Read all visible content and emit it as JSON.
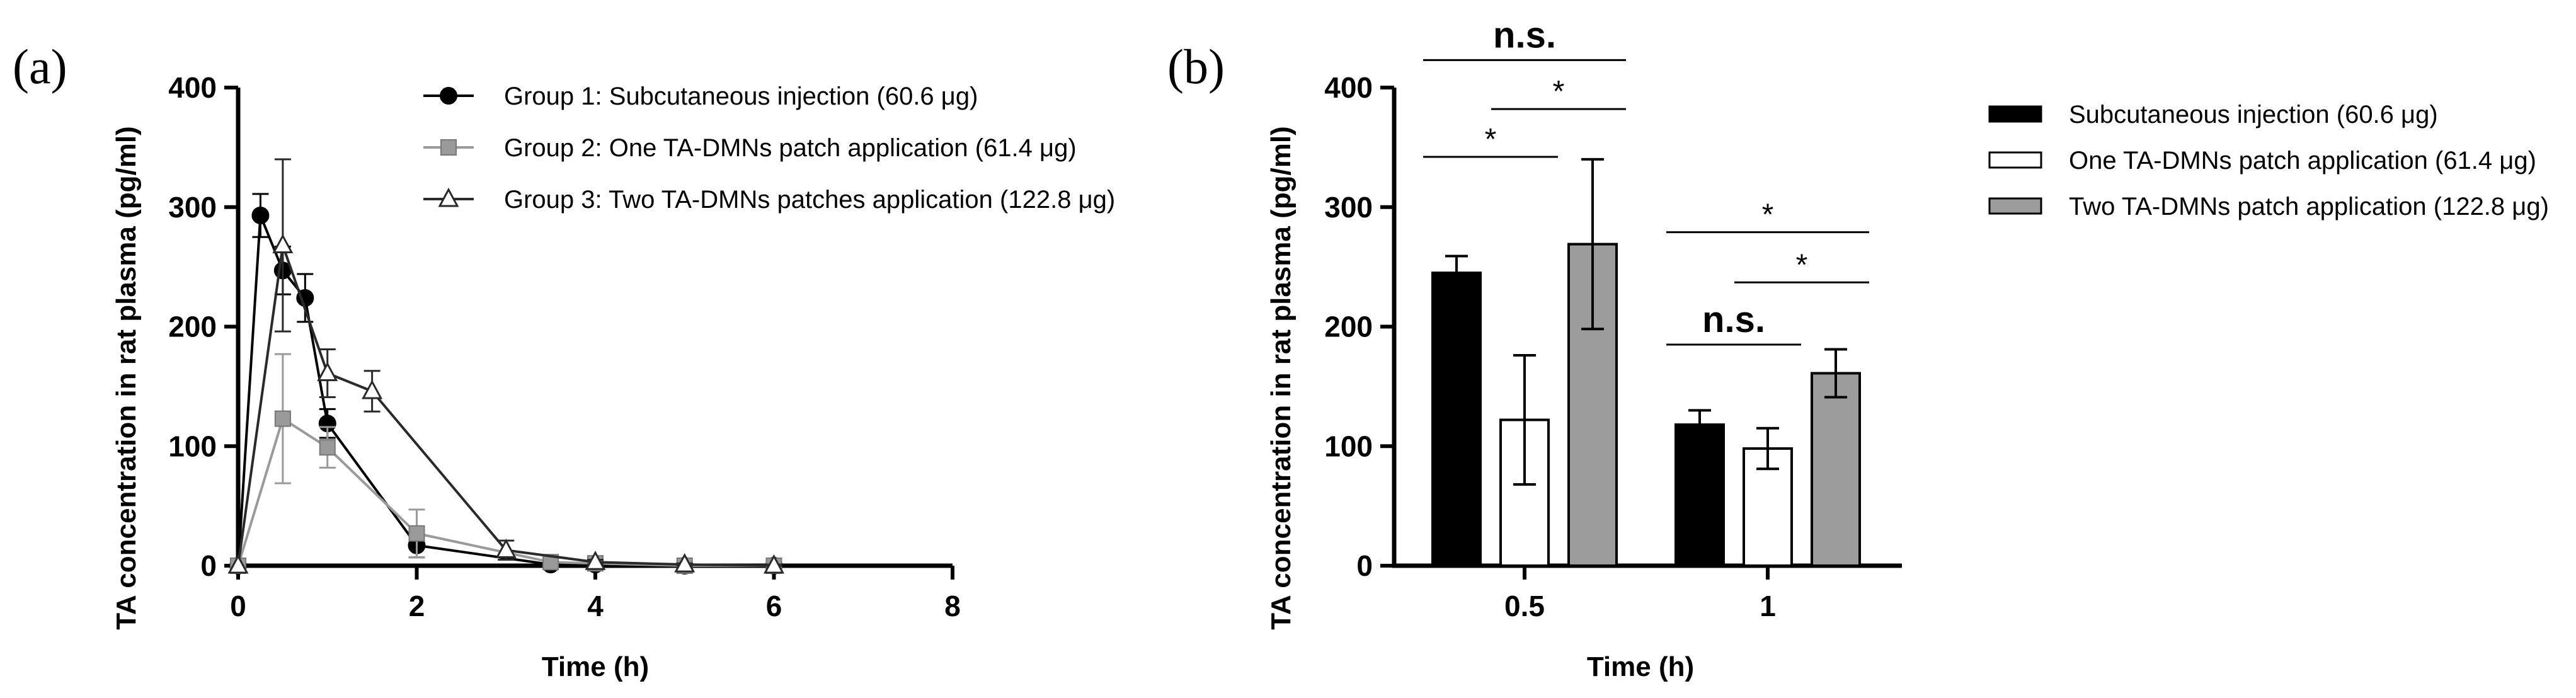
{
  "chart_data": [
    {
      "panel": "(a)",
      "type": "line",
      "xlabel": "Time (h)",
      "ylabel": "TA concentration in rat plasma (pg/ml)",
      "xlim": [
        0,
        8
      ],
      "ylim": [
        0,
        400
      ],
      "xticks": [
        "0",
        "2",
        "4",
        "6",
        "8"
      ],
      "yticks": [
        "0",
        "100",
        "200",
        "300",
        "400"
      ],
      "legend_position": "top-right",
      "grid": false,
      "series": [
        {
          "name": "Group 1: Subcutaneous injection (60.6 μg)",
          "color": "#000000",
          "marker": "circle",
          "x": [
            0,
            0.25,
            0.5,
            0.75,
            1,
            2,
            3.5,
            4,
            5,
            6
          ],
          "y": [
            0,
            293,
            247,
            224,
            119,
            17,
            1,
            1,
            0,
            0
          ],
          "err": [
            0,
            18,
            20,
            20,
            12,
            10,
            2,
            2,
            1,
            1
          ]
        },
        {
          "name": "Group 2: One TA-DMNs patch application (61.4 μg)",
          "color": "#9a9a9a",
          "marker": "square",
          "x": [
            0,
            0.5,
            1,
            2,
            3.5,
            4,
            5,
            6
          ],
          "y": [
            0,
            123,
            99,
            27,
            3,
            2,
            0,
            0
          ],
          "err": [
            0,
            54,
            17,
            20,
            3,
            2,
            1,
            1
          ]
        },
        {
          "name": "Group 3: Two TA-DMNs patches application (122.8 μg)",
          "color": "#2a2a2a",
          "marker": "triangle",
          "x": [
            0,
            0.5,
            1,
            1.5,
            3,
            4,
            5,
            6
          ],
          "y": [
            0,
            268,
            161,
            146,
            13,
            3,
            1,
            0
          ],
          "err": [
            0,
            72,
            20,
            17,
            8,
            2,
            1,
            1
          ]
        }
      ]
    },
    {
      "panel": "(b)",
      "type": "bar",
      "xlabel": "Time (h)",
      "ylabel": "TA concentration in rat plasma (pg/ml)",
      "categories": [
        "0.5",
        "1"
      ],
      "ylim": [
        0,
        400
      ],
      "yticks": [
        "0",
        "100",
        "200",
        "300",
        "400"
      ],
      "legend_position": "right",
      "grid": false,
      "series": [
        {
          "name": "Subcutaneous injection (60.6 μg)",
          "color": "#000000",
          "values": [
            245,
            118
          ],
          "err": [
            14,
            12
          ]
        },
        {
          "name": "One TA-DMNs patch application (61.4 μg)",
          "color": "#ffffff",
          "values": [
            122,
            98
          ],
          "err": [
            54,
            17
          ]
        },
        {
          "name": "Two TA-DMNs patch application (122.8 μg)",
          "color": "#9c9c9c",
          "values": [
            269,
            161
          ],
          "err": [
            71,
            20
          ]
        }
      ],
      "annotations": [
        {
          "label": "n.s.",
          "category": 0,
          "from_series": 0,
          "to_series": 2,
          "y": 423
        },
        {
          "label": "*",
          "category": 0,
          "from_series": 0,
          "to_series": 1,
          "y": 342
        },
        {
          "label": "*",
          "category": 0,
          "from_series": 1,
          "to_series": 2,
          "y": 382
        },
        {
          "label": "n.s.",
          "category": 1,
          "from_series": 0,
          "to_series": 1,
          "y": 185
        },
        {
          "label": "*",
          "category": 1,
          "from_series": 0,
          "to_series": 2,
          "y": 279
        },
        {
          "label": "*",
          "category": 1,
          "from_series": 1,
          "to_series": 2,
          "y": 237
        }
      ]
    }
  ]
}
